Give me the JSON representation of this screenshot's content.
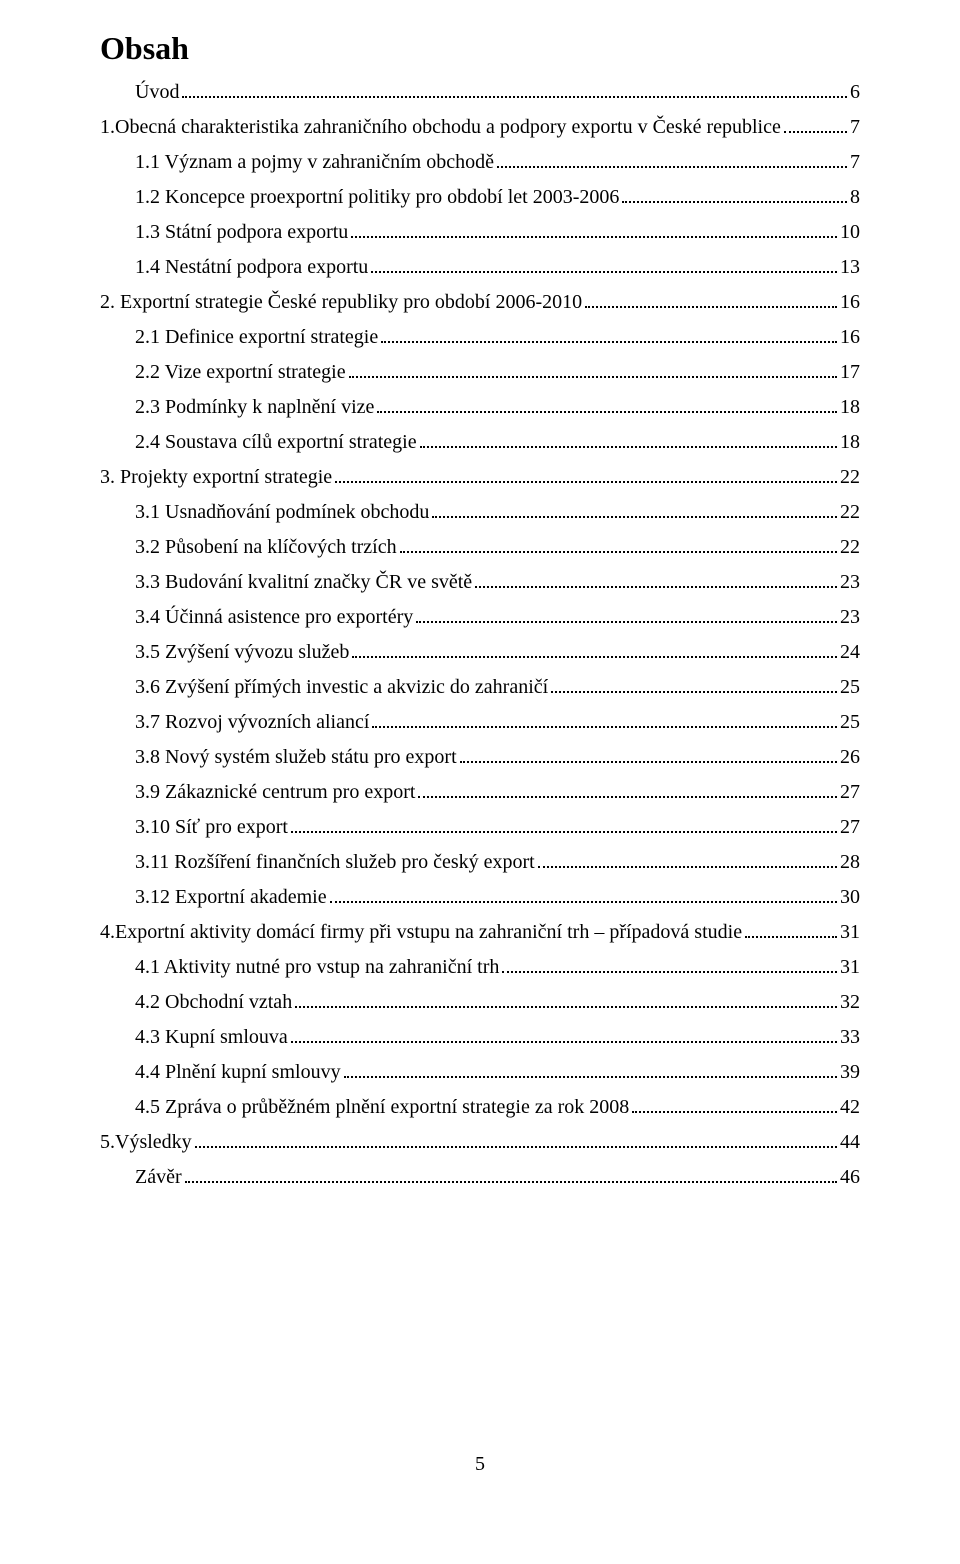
{
  "heading": "Obsah",
  "page_number": "5",
  "entries": [
    {
      "title": "Úvod",
      "page": "6",
      "indent": 1
    },
    {
      "title": "1.Obecná charakteristika zahraničního obchodu a podpory exportu v České republice",
      "page": "7",
      "indent": 0
    },
    {
      "title": "1.1 Význam a pojmy v zahraničním obchodě",
      "page": "7",
      "indent": 1
    },
    {
      "title": "1.2 Koncepce proexportní politiky pro období let  2003-2006",
      "page": "8",
      "indent": 1
    },
    {
      "title": "1.3 Státní podpora exportu",
      "page": "10",
      "indent": 1
    },
    {
      "title": "1.4 Nestátní podpora exportu",
      "page": "13",
      "indent": 1
    },
    {
      "title": "2. Exportní strategie České republiky pro období 2006-2010",
      "page": "16",
      "indent": 0
    },
    {
      "title": "2.1 Definice exportní strategie",
      "page": "16",
      "indent": 1
    },
    {
      "title": "2.2 Vize exportní strategie",
      "page": "17",
      "indent": 1
    },
    {
      "title": "2.3 Podmínky k naplnění vize",
      "page": "18",
      "indent": 1
    },
    {
      "title": "2.4 Soustava cílů exportní strategie",
      "page": "18",
      "indent": 1
    },
    {
      "title": "3. Projekty exportní strategie",
      "page": "22",
      "indent": 0
    },
    {
      "title": "3.1 Usnadňování podmínek obchodu",
      "page": "22",
      "indent": 1
    },
    {
      "title": "3.2 Působení na klíčových trzích",
      "page": "22",
      "indent": 1
    },
    {
      "title": "3.3 Budování kvalitní značky ČR ve světě",
      "page": "23",
      "indent": 1
    },
    {
      "title": "3.4 Účinná asistence pro exportéry",
      "page": "23",
      "indent": 1
    },
    {
      "title": "3.5 Zvýšení vývozu služeb",
      "page": "24",
      "indent": 1
    },
    {
      "title": "3.6 Zvýšení přímých investic a akvizic do zahraničí",
      "page": "25",
      "indent": 1
    },
    {
      "title": "3.7 Rozvoj vývozních aliancí",
      "page": "25",
      "indent": 1
    },
    {
      "title": "3.8 Nový systém služeb státu pro export",
      "page": "26",
      "indent": 1
    },
    {
      "title": "3.9 Zákaznické centrum pro export",
      "page": "27",
      "indent": 1
    },
    {
      "title": "3.10 Síť pro export",
      "page": "27",
      "indent": 1
    },
    {
      "title": "3.11 Rozšíření finančních služeb pro český export",
      "page": "28",
      "indent": 1
    },
    {
      "title": "3.12 Exportní akademie",
      "page": "30",
      "indent": 1
    },
    {
      "title": "4.Exportní aktivity domácí firmy při vstupu na zahraniční trh – případová studie",
      "page": "31",
      "indent": 0
    },
    {
      "title": "4.1 Aktivity nutné pro vstup na zahraniční trh",
      "page": "31",
      "indent": 1
    },
    {
      "title": "4.2 Obchodní vztah",
      "page": "32",
      "indent": 1
    },
    {
      "title": "4.3 Kupní smlouva",
      "page": "33",
      "indent": 1
    },
    {
      "title": "4.4 Plnění kupní smlouvy",
      "page": "39",
      "indent": 1
    },
    {
      "title": "4.5 Zpráva o průběžném plnění exportní strategie za rok 2008",
      "page": "42",
      "indent": 1
    },
    {
      "title": "5.Výsledky",
      "page": "44",
      "indent": 0
    },
    {
      "title": "Závěr",
      "page": "46",
      "indent": 1
    }
  ]
}
